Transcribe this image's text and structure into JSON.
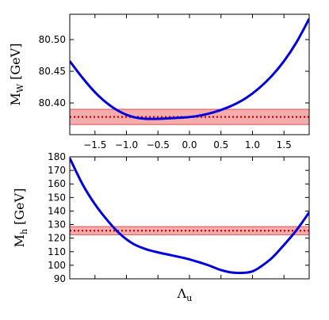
{
  "chart_data": [
    {
      "type": "line",
      "ylabel": "M",
      "ylabel_sub": "W",
      "ylabel_unit": " [GeV]",
      "xlim": [
        -1.9,
        1.9
      ],
      "ylim": [
        80.35,
        80.54
      ],
      "xticks": [
        -1.5,
        -1.0,
        -0.5,
        0.0,
        0.5,
        1.0,
        1.5
      ],
      "xtick_labels": [
        "−1.5",
        "−1.0",
        "−0.5",
        "0.0",
        "0.5",
        "1.0",
        "1.5"
      ],
      "yticks": [
        80.4,
        80.45,
        80.5
      ],
      "ytick_labels": [
        "80.40",
        "80.45",
        "80.50"
      ],
      "band": {
        "center": 80.378,
        "low": 80.366,
        "high": 80.39,
        "color": "#f08080",
        "line_color": "#cc0000"
      },
      "series": [
        {
          "color": "#0000dd",
          "x": [
            -1.9,
            -1.7,
            -1.5,
            -1.3,
            -1.1,
            -0.9,
            -0.7,
            -0.5,
            -0.3,
            -0.1,
            0.1,
            0.3,
            0.5,
            0.7,
            0.9,
            1.1,
            1.3,
            1.5,
            1.7,
            1.9
          ],
          "y": [
            80.466,
            80.44,
            80.417,
            80.399,
            80.386,
            80.378,
            80.375,
            80.375,
            80.376,
            80.377,
            80.379,
            80.383,
            80.389,
            80.397,
            80.408,
            80.423,
            80.442,
            80.466,
            80.496,
            80.533
          ]
        }
      ]
    },
    {
      "type": "line",
      "xlabel": "Λ",
      "xlabel_sub": "u",
      "ylabel": "M",
      "ylabel_sub": "h",
      "ylabel_unit": " [GeV]",
      "xlim": [
        -1.9,
        1.9
      ],
      "ylim": [
        90,
        180
      ],
      "xticks": [
        -1.5,
        -1.0,
        -0.5,
        0.0,
        0.5,
        1.0,
        1.5
      ],
      "yticks": [
        90,
        100,
        110,
        120,
        130,
        140,
        150,
        160,
        170,
        180
      ],
      "ytick_labels": [
        "90",
        "100",
        "110",
        "120",
        "130",
        "140",
        "150",
        "160",
        "170",
        "180"
      ],
      "band": {
        "center": 125.5,
        "low": 122.5,
        "high": 128.5,
        "color": "#f08080",
        "line_color": "#cc0000"
      },
      "series": [
        {
          "color": "#0000dd",
          "x": [
            -1.9,
            -1.7,
            -1.5,
            -1.3,
            -1.1,
            -0.9,
            -0.7,
            -0.5,
            -0.3,
            -0.1,
            0.1,
            0.3,
            0.5,
            0.7,
            0.9,
            1.0,
            1.1,
            1.3,
            1.5,
            1.7,
            1.9
          ],
          "y": [
            179,
            160,
            145,
            133,
            123,
            116,
            112,
            109.5,
            107.5,
            105.5,
            103,
            100,
            96.5,
            94.5,
            94.5,
            95.5,
            98,
            105,
            115,
            126,
            139
          ]
        }
      ]
    }
  ]
}
